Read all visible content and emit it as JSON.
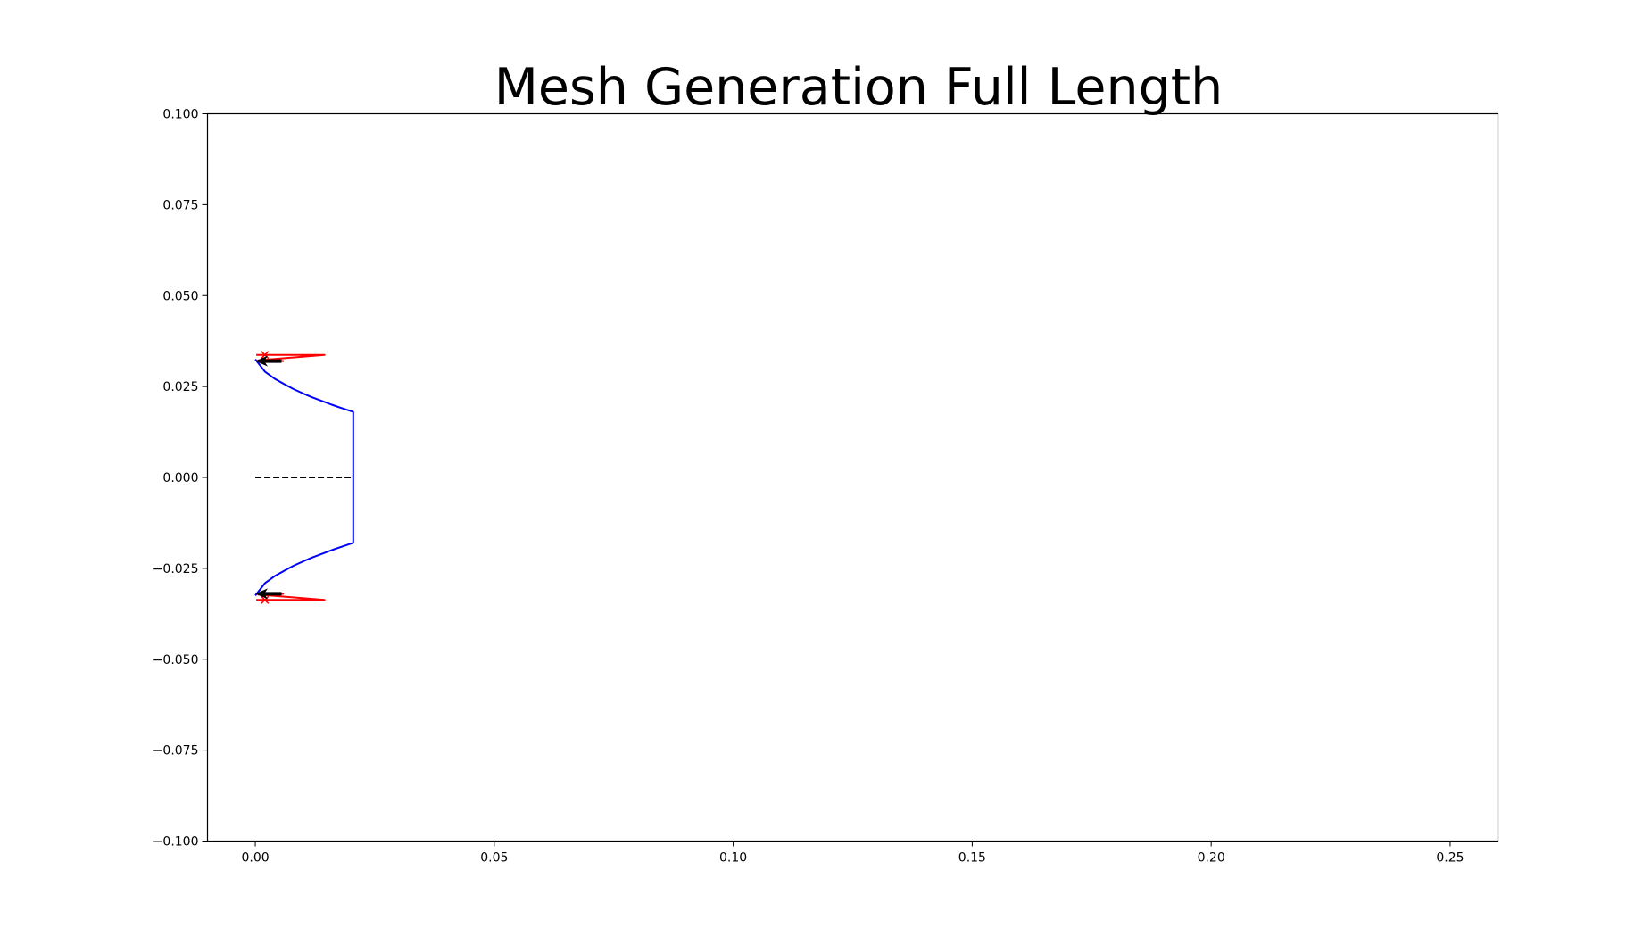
{
  "chart_data": {
    "type": "line",
    "title": "Mesh Generation Full Length",
    "xlabel": "",
    "ylabel": "",
    "xlim": [
      -0.01,
      0.26
    ],
    "ylim": [
      -0.1,
      0.1
    ],
    "grid": false,
    "x_ticks": [
      "0.00",
      "0.05",
      "0.10",
      "0.15",
      "0.20",
      "0.25"
    ],
    "x_tick_values": [
      0.0,
      0.05,
      0.1,
      0.15,
      0.2,
      0.25
    ],
    "y_ticks": [
      "0.100",
      "0.075",
      "0.050",
      "0.025",
      "0.000",
      "−0.025",
      "−0.050",
      "−0.075",
      "−0.100"
    ],
    "y_tick_values": [
      0.1,
      0.075,
      0.05,
      0.025,
      0.0,
      -0.025,
      -0.05,
      -0.075,
      -0.1
    ],
    "series": [
      {
        "kind": "line",
        "color": "#0000ff",
        "dash": "solid",
        "x": [
          0.0,
          0.002,
          0.004,
          0.006,
          0.008,
          0.01,
          0.012,
          0.014,
          0.016,
          0.018,
          0.0205,
          0.0205,
          0.0205,
          0.018,
          0.016,
          0.014,
          0.012,
          0.01,
          0.008,
          0.006,
          0.004,
          0.002,
          0.0
        ],
        "y": [
          0.0325,
          0.0291,
          0.0272,
          0.0257,
          0.0243,
          0.0231,
          0.022,
          0.021,
          0.02,
          0.0191,
          0.018,
          0.0,
          -0.018,
          -0.0191,
          -0.02,
          -0.021,
          -0.022,
          -0.0231,
          -0.0243,
          -0.0257,
          -0.0272,
          -0.0291,
          -0.0325
        ]
      },
      {
        "kind": "line",
        "color": "#000000",
        "dash": "dashed",
        "x": [
          0.0,
          0.0205
        ],
        "y": [
          0.0,
          0.0
        ]
      },
      {
        "kind": "line",
        "color": "#ff0000",
        "dash": "solid",
        "x": [
          0.0002,
          0.0145,
          0.0006,
          0.006
        ],
        "y": [
          0.0337,
          0.0337,
          0.0322,
          0.032
        ]
      },
      {
        "kind": "line",
        "color": "#ff0000",
        "dash": "solid",
        "x": [
          0.0002,
          0.0145,
          0.0006,
          0.006
        ],
        "y": [
          -0.0337,
          -0.0337,
          -0.0322,
          -0.032
        ]
      },
      {
        "kind": "marker",
        "marker": "x",
        "color": "#ff0000",
        "x": [
          0.002,
          0.002
        ],
        "y": [
          0.0337,
          -0.0337
        ]
      },
      {
        "kind": "arrow",
        "color": "#000000",
        "x": [
          0.0055,
          0.0055
        ],
        "y": [
          0.032,
          -0.032
        ],
        "dx": [
          -0.0055,
          -0.0055
        ],
        "dy": [
          0.0,
          0.0
        ]
      }
    ]
  }
}
